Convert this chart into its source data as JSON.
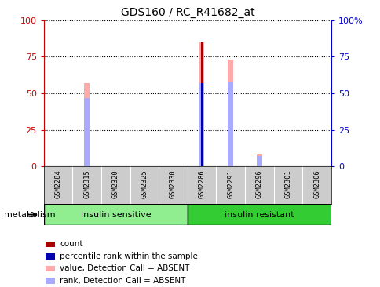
{
  "title": "GDS160 / RC_R41682_at",
  "samples": [
    "GSM2284",
    "GSM2315",
    "GSM2320",
    "GSM2325",
    "GSM2330",
    "GSM2286",
    "GSM2291",
    "GSM2296",
    "GSM2301",
    "GSM2306"
  ],
  "groups": [
    {
      "label": "insulin sensitive",
      "start": 0,
      "end": 5,
      "color": "#90ee90"
    },
    {
      "label": "insulin resistant",
      "start": 5,
      "end": 10,
      "color": "#33cc33"
    }
  ],
  "group_label": "metabolism",
  "ylim": [
    0,
    100
  ],
  "yticks": [
    0,
    25,
    50,
    75,
    100
  ],
  "ytick_labels_left": [
    "0",
    "25",
    "50",
    "75",
    "100"
  ],
  "ytick_labels_right": [
    "0",
    "25",
    "50",
    "75",
    "100%"
  ],
  "left_axis_color": "#cc0000",
  "right_axis_color": "#0000cc",
  "value_absent_color": "#ffaaaa",
  "rank_absent_color": "#aaaaff",
  "count_color": "#aa0000",
  "percentile_color": "#0000aa",
  "sample_bg_color": "#cccccc",
  "values_absent": [
    0,
    57,
    0,
    0,
    0,
    85,
    73,
    8,
    0,
    0
  ],
  "ranks_absent": [
    0,
    47,
    0,
    0,
    0,
    57,
    58,
    7,
    0,
    0
  ],
  "counts": [
    0,
    0,
    0,
    0,
    0,
    85,
    0,
    0,
    0,
    0
  ],
  "percentiles": [
    0,
    0,
    0,
    0,
    0,
    57,
    0,
    0,
    0,
    0
  ],
  "legend_items": [
    {
      "color": "#aa0000",
      "label": "count"
    },
    {
      "color": "#0000aa",
      "label": "percentile rank within the sample"
    },
    {
      "color": "#ffaaaa",
      "label": "value, Detection Call = ABSENT"
    },
    {
      "color": "#aaaaff",
      "label": "rank, Detection Call = ABSENT"
    }
  ]
}
